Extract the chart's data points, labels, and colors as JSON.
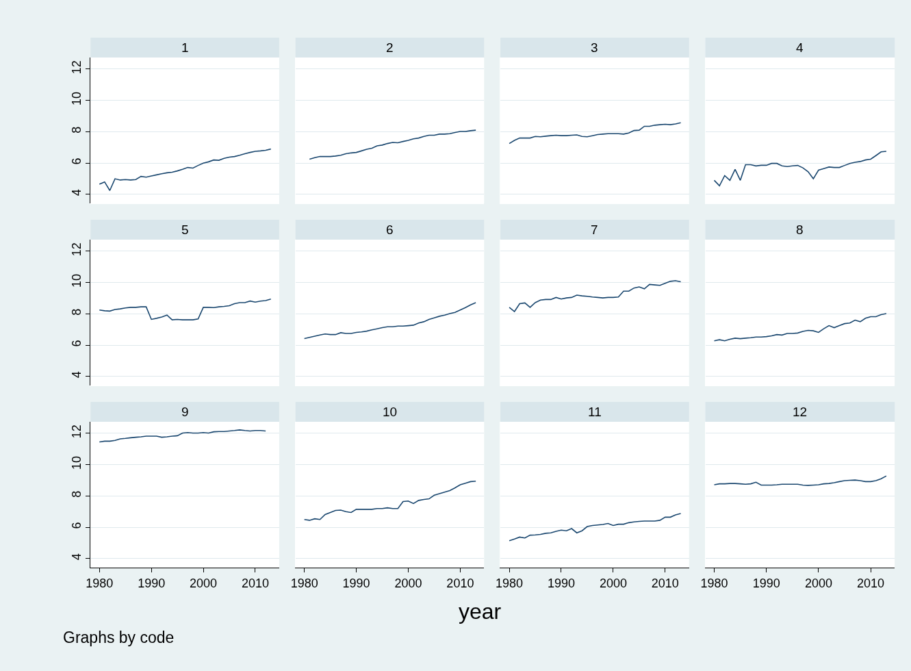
{
  "chart_data": [
    {
      "type": "line",
      "title": "1",
      "color": "#1a476f",
      "grid": "y",
      "tick_labels": "y",
      "xlim": [
        1978.3,
        2014.6
      ],
      "ylim": [
        3.43,
        12.74
      ],
      "xticks": [
        1980,
        1990,
        2000,
        2010
      ],
      "yticks": [
        4,
        6,
        8,
        10,
        12
      ],
      "x": [
        1980,
        1981,
        1982,
        1983,
        1984,
        1985,
        1986,
        1987,
        1988,
        1989,
        1990,
        1991,
        1992,
        1993,
        1994,
        1995,
        1996,
        1997,
        1998,
        1999,
        2000,
        2001,
        2002,
        2003,
        2004,
        2005,
        2006,
        2007,
        2008,
        2009,
        2010,
        2011,
        2012,
        2013
      ],
      "values": [
        4.65,
        4.8,
        4.25,
        5.0,
        4.92,
        4.95,
        4.92,
        4.95,
        5.15,
        5.1,
        5.18,
        5.25,
        5.32,
        5.38,
        5.42,
        5.5,
        5.6,
        5.72,
        5.68,
        5.85,
        6.0,
        6.08,
        6.2,
        6.18,
        6.3,
        6.38,
        6.42,
        6.5,
        6.6,
        6.68,
        6.75,
        6.78,
        6.82,
        6.9
      ]
    },
    {
      "type": "line",
      "title": "2",
      "color": "#1a476f",
      "grid": "y",
      "tick_labels": false,
      "xlim": [
        1978.3,
        2014.6
      ],
      "ylim": [
        3.43,
        12.74
      ],
      "xticks": [
        1980,
        1990,
        2000,
        2010
      ],
      "yticks": [
        4,
        6,
        8,
        10,
        12
      ],
      "x": [
        1981,
        1982,
        1983,
        1984,
        1985,
        1986,
        1987,
        1988,
        1989,
        1990,
        1991,
        1992,
        1993,
        1994,
        1995,
        1996,
        1997,
        1998,
        1999,
        2000,
        2001,
        2002,
        2003,
        2004,
        2005,
        2006,
        2007,
        2008,
        2009,
        2010,
        2011,
        2012,
        2013
      ],
      "values": [
        6.25,
        6.35,
        6.42,
        6.42,
        6.42,
        6.45,
        6.5,
        6.6,
        6.65,
        6.68,
        6.78,
        6.88,
        6.95,
        7.1,
        7.15,
        7.25,
        7.32,
        7.3,
        7.38,
        7.45,
        7.55,
        7.6,
        7.7,
        7.78,
        7.78,
        7.85,
        7.85,
        7.88,
        7.95,
        8.02,
        8.02,
        8.07,
        8.1
      ]
    },
    {
      "type": "line",
      "title": "3",
      "color": "#1a476f",
      "grid": "y",
      "tick_labels": false,
      "xlim": [
        1978.3,
        2014.6
      ],
      "ylim": [
        3.43,
        12.74
      ],
      "xticks": [
        1980,
        1990,
        2000,
        2010
      ],
      "yticks": [
        4,
        6,
        8,
        10,
        12
      ],
      "x": [
        1980,
        1981,
        1982,
        1983,
        1984,
        1985,
        1986,
        1987,
        1988,
        1989,
        1990,
        1991,
        1992,
        1993,
        1994,
        1995,
        1996,
        1997,
        1998,
        1999,
        2000,
        2001,
        2002,
        2003,
        2004,
        2005,
        2006,
        2007,
        2008,
        2009,
        2010,
        2011,
        2012,
        2013
      ],
      "values": [
        7.25,
        7.45,
        7.6,
        7.6,
        7.6,
        7.7,
        7.68,
        7.72,
        7.75,
        7.78,
        7.75,
        7.75,
        7.78,
        7.8,
        7.7,
        7.68,
        7.75,
        7.82,
        7.85,
        7.88,
        7.88,
        7.88,
        7.85,
        7.92,
        8.08,
        8.1,
        8.35,
        8.35,
        8.42,
        8.45,
        8.48,
        8.45,
        8.5,
        8.58
      ]
    },
    {
      "type": "line",
      "title": "4",
      "color": "#1a476f",
      "grid": "y",
      "tick_labels": false,
      "xlim": [
        1978.3,
        2014.6
      ],
      "ylim": [
        3.43,
        12.74
      ],
      "xticks": [
        1980,
        1990,
        2000,
        2010
      ],
      "yticks": [
        4,
        6,
        8,
        10,
        12
      ],
      "x": [
        1980,
        1981,
        1982,
        1983,
        1984,
        1985,
        1986,
        1987,
        1988,
        1989,
        1990,
        1991,
        1992,
        1993,
        1994,
        1995,
        1996,
        1997,
        1998,
        1999,
        2000,
        2001,
        2002,
        2003,
        2004,
        2005,
        2006,
        2007,
        2008,
        2009,
        2010,
        2011,
        2012,
        2013
      ],
      "values": [
        4.9,
        4.55,
        5.2,
        4.9,
        5.6,
        4.9,
        5.9,
        5.9,
        5.82,
        5.86,
        5.86,
        5.98,
        5.98,
        5.82,
        5.78,
        5.82,
        5.85,
        5.7,
        5.45,
        5.0,
        5.55,
        5.65,
        5.75,
        5.72,
        5.72,
        5.85,
        5.98,
        6.05,
        6.1,
        6.2,
        6.25,
        6.48,
        6.72,
        6.75
      ]
    },
    {
      "type": "line",
      "title": "5",
      "color": "#1a476f",
      "grid": "y",
      "tick_labels": "y",
      "xlim": [
        1978.3,
        2014.6
      ],
      "ylim": [
        3.43,
        12.74
      ],
      "xticks": [
        1980,
        1990,
        2000,
        2010
      ],
      "yticks": [
        4,
        6,
        8,
        10,
        12
      ],
      "x": [
        1980,
        1981,
        1982,
        1983,
        1984,
        1985,
        1986,
        1987,
        1988,
        1989,
        1990,
        1991,
        1992,
        1993,
        1994,
        1995,
        1996,
        1997,
        1998,
        1999,
        2000,
        2001,
        2002,
        2003,
        2004,
        2005,
        2006,
        2007,
        2008,
        2009,
        2010,
        2011,
        2012,
        2013
      ],
      "values": [
        8.25,
        8.2,
        8.18,
        8.28,
        8.32,
        8.38,
        8.42,
        8.42,
        8.45,
        8.45,
        7.65,
        7.72,
        7.8,
        7.92,
        7.62,
        7.65,
        7.62,
        7.62,
        7.62,
        7.68,
        8.42,
        8.42,
        8.4,
        8.45,
        8.48,
        8.52,
        8.65,
        8.72,
        8.72,
        8.82,
        8.75,
        8.82,
        8.85,
        8.95
      ]
    },
    {
      "type": "line",
      "title": "6",
      "color": "#1a476f",
      "grid": "y",
      "tick_labels": false,
      "xlim": [
        1978.3,
        2014.6
      ],
      "ylim": [
        3.43,
        12.74
      ],
      "xticks": [
        1980,
        1990,
        2000,
        2010
      ],
      "yticks": [
        4,
        6,
        8,
        10,
        12
      ],
      "x": [
        1980,
        1981,
        1982,
        1983,
        1984,
        1985,
        1986,
        1987,
        1988,
        1989,
        1990,
        1991,
        1992,
        1993,
        1994,
        1995,
        1996,
        1997,
        1998,
        1999,
        2000,
        2001,
        2002,
        2003,
        2004,
        2005,
        2006,
        2007,
        2008,
        2009,
        2010,
        2011,
        2012,
        2013
      ],
      "values": [
        6.42,
        6.5,
        6.58,
        6.65,
        6.72,
        6.68,
        6.68,
        6.8,
        6.75,
        6.75,
        6.82,
        6.85,
        6.9,
        6.98,
        7.05,
        7.12,
        7.18,
        7.18,
        7.22,
        7.22,
        7.25,
        7.28,
        7.42,
        7.5,
        7.65,
        7.75,
        7.85,
        7.92,
        8.02,
        8.1,
        8.25,
        8.4,
        8.58,
        8.72
      ]
    },
    {
      "type": "line",
      "title": "7",
      "color": "#1a476f",
      "grid": "y",
      "tick_labels": false,
      "xlim": [
        1978.3,
        2014.6
      ],
      "ylim": [
        3.43,
        12.74
      ],
      "xticks": [
        1980,
        1990,
        2000,
        2010
      ],
      "yticks": [
        4,
        6,
        8,
        10,
        12
      ],
      "x": [
        1980,
        1981,
        1982,
        1983,
        1984,
        1985,
        1986,
        1987,
        1988,
        1989,
        1990,
        1991,
        1992,
        1993,
        1994,
        1995,
        1996,
        1997,
        1998,
        1999,
        2000,
        2001,
        2002,
        2003,
        2004,
        2005,
        2006,
        2007,
        2008,
        2009,
        2010,
        2011,
        2012,
        2013
      ],
      "values": [
        8.42,
        8.15,
        8.65,
        8.7,
        8.42,
        8.72,
        8.88,
        8.92,
        8.92,
        9.05,
        8.95,
        9.02,
        9.05,
        9.2,
        9.15,
        9.12,
        9.08,
        9.05,
        9.02,
        9.05,
        9.05,
        9.08,
        9.45,
        9.45,
        9.65,
        9.72,
        9.6,
        9.88,
        9.85,
        9.82,
        9.95,
        10.08,
        10.12,
        10.05
      ]
    },
    {
      "type": "line",
      "title": "8",
      "color": "#1a476f",
      "grid": "y",
      "tick_labels": false,
      "xlim": [
        1978.3,
        2014.6
      ],
      "ylim": [
        3.43,
        12.74
      ],
      "xticks": [
        1980,
        1990,
        2000,
        2010
      ],
      "yticks": [
        4,
        6,
        8,
        10,
        12
      ],
      "x": [
        1980,
        1981,
        1982,
        1983,
        1984,
        1985,
        1986,
        1987,
        1988,
        1989,
        1990,
        1991,
        1992,
        1993,
        1994,
        1995,
        1996,
        1997,
        1998,
        1999,
        2000,
        2001,
        2002,
        2003,
        2004,
        2005,
        2006,
        2007,
        2008,
        2009,
        2010,
        2011,
        2012,
        2013
      ],
      "values": [
        6.28,
        6.35,
        6.28,
        6.38,
        6.45,
        6.42,
        6.45,
        6.48,
        6.52,
        6.52,
        6.55,
        6.6,
        6.68,
        6.65,
        6.75,
        6.75,
        6.78,
        6.88,
        6.95,
        6.92,
        6.82,
        7.05,
        7.25,
        7.12,
        7.25,
        7.38,
        7.42,
        7.6,
        7.5,
        7.72,
        7.82,
        7.82,
        7.95,
        8.02
      ]
    },
    {
      "type": "line",
      "title": "9",
      "color": "#1a476f",
      "annotations": [
        "Graphs by code"
      ],
      "grid": "y",
      "xlim": [
        1978.3,
        2014.6
      ],
      "ylim": [
        3.43,
        12.74
      ],
      "xticks": [
        1980,
        1990,
        2000,
        2010
      ],
      "yticks": [
        4,
        6,
        8,
        10,
        12
      ],
      "x": [
        1980,
        1981,
        1982,
        1983,
        1984,
        1985,
        1986,
        1987,
        1988,
        1989,
        1990,
        1991,
        1992,
        1993,
        1994,
        1995,
        1996,
        1997,
        1998,
        1999,
        2000,
        2001,
        2002,
        2003,
        2004,
        2005,
        2006,
        2007,
        2008,
        2009,
        2010,
        2011,
        2012
      ],
      "values": [
        11.45,
        11.5,
        11.5,
        11.55,
        11.65,
        11.68,
        11.72,
        11.75,
        11.78,
        11.82,
        11.82,
        11.82,
        11.75,
        11.78,
        11.82,
        11.85,
        12.02,
        12.05,
        12.02,
        12.02,
        12.05,
        12.02,
        12.1,
        12.12,
        12.12,
        12.15,
        12.18,
        12.22,
        12.18,
        12.15,
        12.18,
        12.18,
        12.15
      ]
    },
    {
      "type": "line",
      "title": "10",
      "color": "#1a476f",
      "xlabel": "year",
      "grid": "y",
      "tick_labels": "x",
      "xlim": [
        1978.3,
        2014.6
      ],
      "ylim": [
        3.43,
        12.74
      ],
      "xticks": [
        1980,
        1990,
        2000,
        2010
      ],
      "yticks": [
        4,
        6,
        8,
        10,
        12
      ],
      "x": [
        1980,
        1981,
        1982,
        1983,
        1984,
        1985,
        1986,
        1987,
        1988,
        1989,
        1990,
        1991,
        1992,
        1993,
        1994,
        1995,
        1996,
        1997,
        1998,
        1999,
        2000,
        2001,
        2002,
        2003,
        2004,
        2005,
        2006,
        2007,
        2008,
        2009,
        2010,
        2011,
        2012,
        2013
      ],
      "values": [
        6.5,
        6.45,
        6.55,
        6.5,
        6.82,
        6.95,
        7.08,
        7.1,
        7.0,
        6.95,
        7.15,
        7.15,
        7.15,
        7.15,
        7.2,
        7.2,
        7.25,
        7.2,
        7.2,
        7.65,
        7.68,
        7.52,
        7.72,
        7.78,
        7.82,
        8.05,
        8.15,
        8.25,
        8.35,
        8.52,
        8.72,
        8.82,
        8.92,
        8.95
      ]
    },
    {
      "type": "line",
      "title": "11",
      "color": "#1a476f",
      "grid": "y",
      "tick_labels": "x",
      "xlim": [
        1978.3,
        2014.6
      ],
      "ylim": [
        3.43,
        12.74
      ],
      "xticks": [
        1980,
        1990,
        2000,
        2010
      ],
      "yticks": [
        4,
        6,
        8,
        10,
        12
      ],
      "x": [
        1980,
        1981,
        1982,
        1983,
        1984,
        1985,
        1986,
        1987,
        1988,
        1989,
        1990,
        1991,
        1992,
        1993,
        1994,
        1995,
        1996,
        1997,
        1998,
        1999,
        2000,
        2001,
        2002,
        2003,
        2004,
        2005,
        2006,
        2007,
        2008,
        2009,
        2010,
        2011,
        2012,
        2013
      ],
      "values": [
        5.15,
        5.25,
        5.38,
        5.32,
        5.5,
        5.52,
        5.55,
        5.62,
        5.65,
        5.75,
        5.82,
        5.78,
        5.92,
        5.65,
        5.78,
        6.05,
        6.12,
        6.15,
        6.18,
        6.25,
        6.12,
        6.2,
        6.2,
        6.3,
        6.35,
        6.38,
        6.4,
        6.4,
        6.4,
        6.45,
        6.65,
        6.65,
        6.8,
        6.88
      ]
    },
    {
      "type": "line",
      "title": "12",
      "color": "#1a476f",
      "grid": "y",
      "tick_labels": "x",
      "xlim": [
        1978.3,
        2014.6
      ],
      "ylim": [
        3.43,
        12.74
      ],
      "xticks": [
        1980,
        1990,
        2000,
        2010
      ],
      "yticks": [
        4,
        6,
        8,
        10,
        12
      ],
      "x": [
        1980,
        1981,
        1982,
        1983,
        1984,
        1985,
        1986,
        1987,
        1988,
        1989,
        1990,
        1991,
        1992,
        1993,
        1994,
        1995,
        1996,
        1997,
        1998,
        1999,
        2000,
        2001,
        2002,
        2003,
        2004,
        2005,
        2006,
        2007,
        2008,
        2009,
        2010,
        2011,
        2012,
        2013
      ],
      "values": [
        8.72,
        8.78,
        8.78,
        8.8,
        8.8,
        8.78,
        8.75,
        8.78,
        8.88,
        8.7,
        8.7,
        8.7,
        8.72,
        8.75,
        8.75,
        8.75,
        8.75,
        8.7,
        8.68,
        8.7,
        8.72,
        8.78,
        8.8,
        8.85,
        8.92,
        8.98,
        9.0,
        9.02,
        8.98,
        8.92,
        8.92,
        8.98,
        9.1,
        9.28
      ]
    }
  ]
}
